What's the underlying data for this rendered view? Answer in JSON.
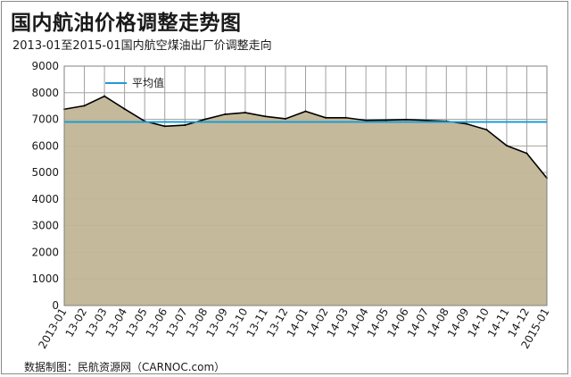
{
  "header": {
    "title": "国内航油价格调整走势图",
    "subtitle": "2013-01至2015-01国内航空煤油出厂价调整走向"
  },
  "footer": {
    "source": "数据制图：民航资源网（CARNOC.com）"
  },
  "colors": {
    "area_fill": "#c4b99a",
    "price_line": "#000000",
    "average_line": "#1e9bd7",
    "grid": "#a0a0a0"
  },
  "chart_data": {
    "type": "area",
    "title": "国内航油价格调整走势图",
    "categories": [
      "2013-01",
      "13-02",
      "13-03",
      "13-04",
      "13-05",
      "13-06",
      "13-07",
      "13-08",
      "13-09",
      "13-10",
      "13-11",
      "13-12",
      "14-01",
      "14-02",
      "14-03",
      "14-04",
      "14-05",
      "14-06",
      "14-07",
      "14-08",
      "14-09",
      "14-10",
      "14-11",
      "14-12",
      "2015-01"
    ],
    "series": [
      {
        "name": "",
        "values": [
          7380,
          7510,
          7870,
          7390,
          6930,
          6740,
          6780,
          7000,
          7190,
          7250,
          7110,
          7020,
          7300,
          7060,
          7060,
          6960,
          6970,
          6990,
          6960,
          6930,
          6830,
          6610,
          6010,
          5720,
          4790
        ]
      }
    ],
    "average": {
      "name": "平均值",
      "value": 6900
    },
    "ylim": [
      0,
      9000
    ],
    "yticks": [
      0,
      1000,
      2000,
      3000,
      4000,
      5000,
      6000,
      7000,
      8000,
      9000
    ],
    "grid": true,
    "legend": "top-left"
  }
}
